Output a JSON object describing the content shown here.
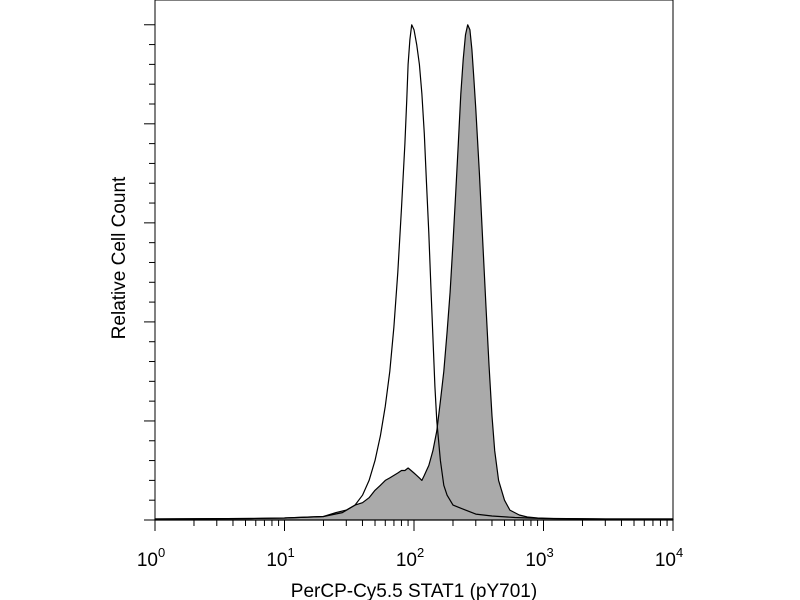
{
  "chart_data": {
    "type": "area",
    "xlabel": "PerCP-Cy5.5 STAT1 (pY701)",
    "ylabel": "Relative Cell Count",
    "x_scale": "log",
    "xlim": [
      1,
      10000
    ],
    "ylim": [
      0,
      1.05
    ],
    "x_ticks": [
      {
        "value": 1,
        "base": "10",
        "exp": "0"
      },
      {
        "value": 10,
        "base": "10",
        "exp": "1"
      },
      {
        "value": 100,
        "base": "10",
        "exp": "2"
      },
      {
        "value": 1000,
        "base": "10",
        "exp": "3"
      },
      {
        "value": 10000,
        "base": "10",
        "exp": "4"
      }
    ],
    "y_major_ticks": [
      0,
      0.2,
      0.4,
      0.6,
      0.8,
      1.0
    ],
    "grid": false,
    "legend": "none",
    "series": [
      {
        "style": "filled",
        "fill_color": "#aaaaaa",
        "stroke_color": "#000000",
        "points": [
          [
            1,
            0.002
          ],
          [
            5.5,
            0.003
          ],
          [
            10,
            0.004
          ],
          [
            20,
            0.007
          ],
          [
            25,
            0.015
          ],
          [
            30,
            0.02
          ],
          [
            35,
            0.03
          ],
          [
            40,
            0.035
          ],
          [
            45,
            0.045
          ],
          [
            50,
            0.06
          ],
          [
            55,
            0.07
          ],
          [
            60,
            0.08
          ],
          [
            65,
            0.085
          ],
          [
            70,
            0.09
          ],
          [
            75,
            0.095
          ],
          [
            80,
            0.1
          ],
          [
            85,
            0.1
          ],
          [
            90,
            0.105
          ],
          [
            95,
            0.1
          ],
          [
            100,
            0.095
          ],
          [
            105,
            0.09
          ],
          [
            110,
            0.085
          ],
          [
            115,
            0.08
          ],
          [
            120,
            0.09
          ],
          [
            125,
            0.1
          ],
          [
            130,
            0.11
          ],
          [
            140,
            0.14
          ],
          [
            150,
            0.18
          ],
          [
            160,
            0.24
          ],
          [
            170,
            0.3
          ],
          [
            180,
            0.38
          ],
          [
            190,
            0.46
          ],
          [
            200,
            0.56
          ],
          [
            210,
            0.66
          ],
          [
            220,
            0.76
          ],
          [
            230,
            0.86
          ],
          [
            240,
            0.93
          ],
          [
            250,
            0.98
          ],
          [
            260,
            1.0
          ],
          [
            270,
            0.99
          ],
          [
            280,
            0.95
          ],
          [
            290,
            0.89
          ],
          [
            300,
            0.83
          ],
          [
            320,
            0.7
          ],
          [
            340,
            0.56
          ],
          [
            360,
            0.43
          ],
          [
            380,
            0.31
          ],
          [
            400,
            0.21
          ],
          [
            420,
            0.14
          ],
          [
            450,
            0.08
          ],
          [
            500,
            0.04
          ],
          [
            550,
            0.02
          ],
          [
            650,
            0.01
          ],
          [
            750,
            0.006
          ],
          [
            900,
            0.004
          ],
          [
            1200,
            0.003
          ],
          [
            3000,
            0.002
          ],
          [
            10000,
            0.002
          ]
        ]
      },
      {
        "style": "outline",
        "fill_color": "none",
        "stroke_color": "#000000",
        "points": [
          [
            1,
            0.002
          ],
          [
            5.5,
            0.003
          ],
          [
            10,
            0.004
          ],
          [
            20,
            0.007
          ],
          [
            28,
            0.015
          ],
          [
            35,
            0.03
          ],
          [
            40,
            0.05
          ],
          [
            45,
            0.08
          ],
          [
            50,
            0.12
          ],
          [
            55,
            0.17
          ],
          [
            60,
            0.23
          ],
          [
            65,
            0.3
          ],
          [
            70,
            0.39
          ],
          [
            75,
            0.5
          ],
          [
            80,
            0.63
          ],
          [
            85,
            0.76
          ],
          [
            88,
            0.85
          ],
          [
            90,
            0.92
          ],
          [
            93,
            0.97
          ],
          [
            96,
            1.0
          ],
          [
            100,
            0.99
          ],
          [
            105,
            0.96
          ],
          [
            110,
            0.92
          ],
          [
            115,
            0.86
          ],
          [
            120,
            0.78
          ],
          [
            125,
            0.68
          ],
          [
            130,
            0.58
          ],
          [
            135,
            0.47
          ],
          [
            140,
            0.37
          ],
          [
            145,
            0.27
          ],
          [
            150,
            0.2
          ],
          [
            160,
            0.12
          ],
          [
            170,
            0.07
          ],
          [
            180,
            0.05
          ],
          [
            200,
            0.03
          ],
          [
            250,
            0.02
          ],
          [
            300,
            0.012
          ],
          [
            400,
            0.008
          ],
          [
            600,
            0.005
          ],
          [
            1000,
            0.003
          ],
          [
            3000,
            0.002
          ],
          [
            10000,
            0.002
          ]
        ]
      }
    ]
  }
}
